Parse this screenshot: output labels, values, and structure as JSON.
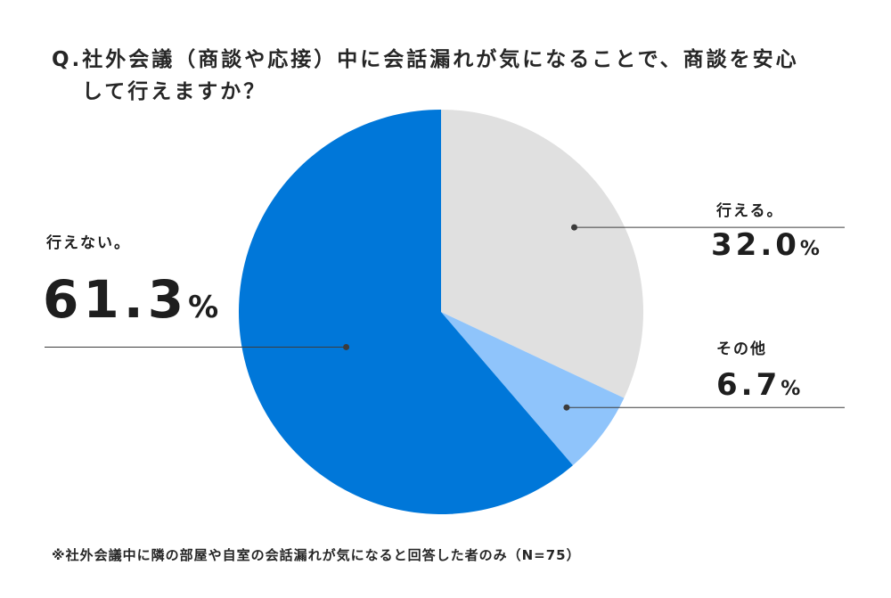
{
  "title": {
    "line1": "Q.社外会議（商談や応接）中に会話漏れが気になることで、商談を安心",
    "line2": "して行えますか？"
  },
  "footnote": "※社外会議中に隣の部屋や自室の会話漏れが気になると回答した者のみ（N=75）",
  "chart_data": {
    "type": "pie",
    "title": "Q.社外会議（商談や応接）中に会話漏れが気になることで、商談を安心して行えますか？",
    "start_angle_deg": 0,
    "direction": "clockwise",
    "slices": [
      {
        "label": "行える。",
        "value": 32.0,
        "value_text": "32.0",
        "unit": "%",
        "color": "#e0e0e0"
      },
      {
        "label": "その他",
        "value": 6.7,
        "value_text": "6.7",
        "unit": "%",
        "color": "#8fc4fb"
      },
      {
        "label": "行えない。",
        "value": 61.3,
        "value_text": "61.3",
        "unit": "%",
        "color": "#0077d9"
      }
    ],
    "leader_color": "#3c3c3c"
  }
}
